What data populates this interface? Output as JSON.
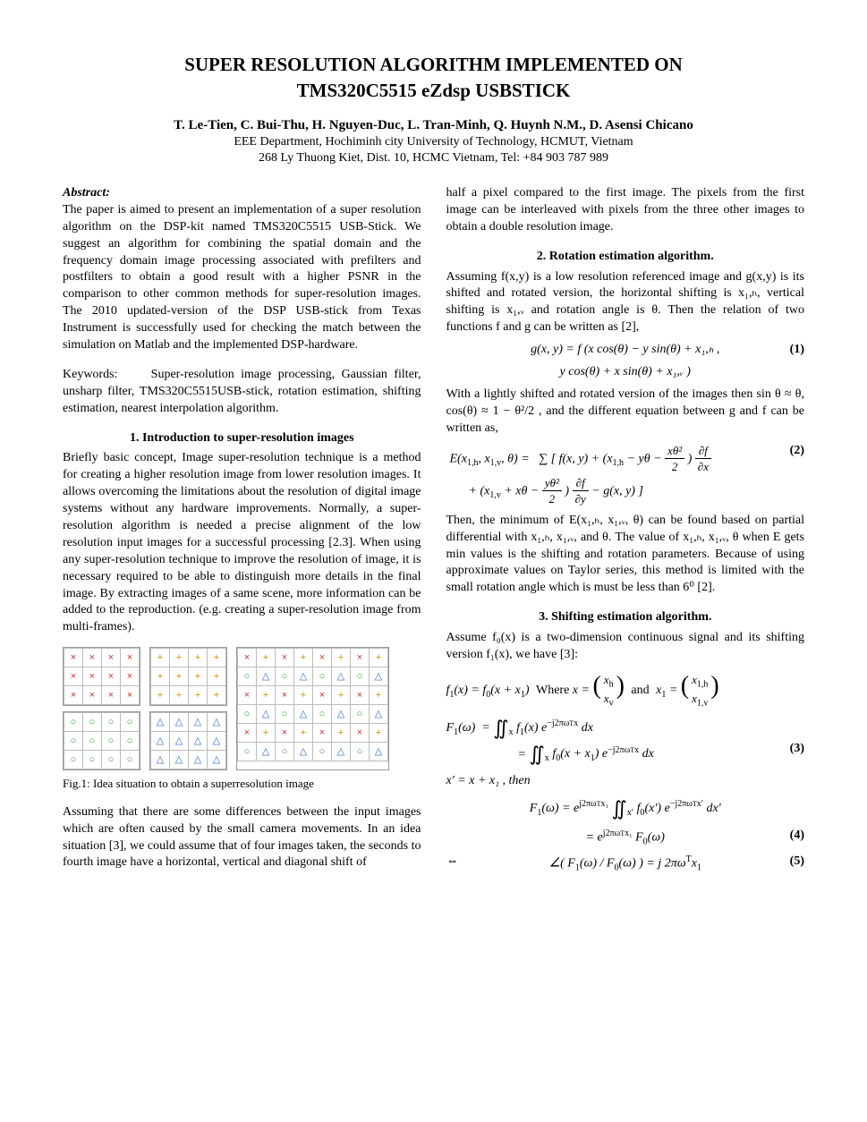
{
  "title_line1": "SUPER RESOLUTION ALGORITHM IMPLEMENTED ON",
  "title_line2": "TMS320C5515 eZdsp USBSTICK",
  "authors": "T. Le-Tien, C. Bui-Thu, H. Nguyen-Duc, L. Tran-Minh, Q. Huynh N.M., D. Asensi Chicano",
  "affil1": "EEE Department, Hochiminh city University of Technology, HCMUT, Vietnam",
  "affil2": "268 Ly Thuong Kiet, Dist. 10, HCMC Vietnam,  Tel:  +84 903 787 989",
  "abstract_label": "Abstract:",
  "abstract_text": "The paper is aimed to present an implementation of a super resolution algorithm on the DSP-kit named TMS320C5515 USB-Stick.  We suggest an algorithm for combining the spatial domain and the frequency domain image processing associated with prefilters and postfilters to obtain a good result with a higher PSNR in the comparison to other common methods for super-resolution images.  The 2010 updated-version of the DSP USB-stick from Texas Instrument is successfully used for checking the match between the simulation on Matlab and the implemented DSP-hardware.",
  "keywords_label": "Keywords:",
  "keywords_text": "Super-resolution image processing, Gaussian filter, unsharp filter, TMS320C5515USB-stick, rotation estimation, shifting estimation, nearest interpolation algorithm.",
  "sec1_h": "1.    Introduction to super-resolution images",
  "sec1_p1": "Briefly basic concept, Image super-resolution technique is a method for creating a higher resolution image from lower resolution images.  It allows overcoming the limitations about the resolution of digital image systems without any hardware improvements. Normally, a super-resolution algorithm is needed a precise alignment of the low resolution input images for a successful processing [2.3]. When using any super-resolution technique to improve the resolution of image, it is necessary required to be able to distinguish more details in the final image. By extracting images of a same scene, more information can be added to the reproduction. (e.g. creating a super-resolution image from multi-frames).",
  "fig1_caption": "Fig.1: Idea situation to obtain a superresolution image",
  "sec1_p2": "Assuming that there are some differences between the input images which are often caused by the small camera movements. In an idea situation [3], we could assume that of four images taken, the seconds to fourth image have a horizontal, vertical and diagonal shift of",
  "col2_p1": "half a pixel compared to the first image. The pixels from the first image can be interleaved with pixels from the three other images to obtain a double resolution image.",
  "sec2_h": "2. Rotation estimation algorithm.",
  "sec2_p1": "Assuming f(x,y) is a low resolution referenced image and g(x,y) is its shifted and rotated version, the horizontal shifting is x₁,ₕ, vertical shifting is x₁,ᵥ and rotation angle is θ. Then the relation of two functions f and g can be written as [2],",
  "eq1": "g(x, y) = f (x cos(θ) − y sin(θ) + x₁,ₕ ,",
  "eq1b": "y cos(θ) + x sin(θ) + x₁,ᵥ )",
  "eq1_num": "(1)",
  "sec2_p2a": "With a lightly shifted and rotated version of the images then sin θ ≈ θ,  cos(θ) ≈ 1 − θ²/2 ,   and   the   different equation between g and f can be written as,",
  "eq2_num": "(2)",
  "sec2_p3": "Then, the minimum of  E(x₁,ₕ, x₁,ᵥ, θ) can be found based on partial differential with x₁,ₕ, x₁,ᵥ, and θ. The value of x₁,ₕ, x₁,ᵥ, θ when E gets min values is the shifting and rotation parameters.  Because of using approximate values on Taylor series, this method is limited with the small rotation angle which is must be less than 6⁰ [2].",
  "sec3_h": "3. Shifting estimation algorithm.",
  "sec3_p1": "Assume  f₀(x)  is a two-dimension continuous signal and  its  shifting  version   f₁(x),   we  have  [3]:",
  "eq3_text": "f₁(x) = f₀(x + x₁)",
  "eq3_where": "Where",
  "eq3_and": "and",
  "eq3_num": "(3)",
  "eq4_text": "x′ = x + x₁ ,   then",
  "eq4_num": "(4)",
  "eq5_num": "(5)",
  "fig1": {
    "small_grids": [
      {
        "rows": 3,
        "cols": 4,
        "symbol": "×",
        "class": "x"
      },
      {
        "rows": 3,
        "cols": 4,
        "symbol": "+",
        "class": "p"
      },
      {
        "rows": 3,
        "cols": 4,
        "symbol": "○",
        "class": "o"
      },
      {
        "rows": 3,
        "cols": 4,
        "symbol": "△",
        "class": "t"
      }
    ],
    "big_grid": {
      "rows": 6,
      "cols": 8,
      "pattern": [
        [
          "×",
          "+",
          "×",
          "+",
          "×",
          "+",
          "×",
          "+"
        ],
        [
          "○",
          "△",
          "○",
          "△",
          "○",
          "△",
          "○",
          "△"
        ],
        [
          "×",
          "+",
          "×",
          "+",
          "×",
          "+",
          "×",
          "+"
        ],
        [
          "○",
          "△",
          "○",
          "△",
          "○",
          "△",
          "○",
          "△"
        ],
        [
          "×",
          "+",
          "×",
          "+",
          "×",
          "+",
          "×",
          "+"
        ],
        [
          "○",
          "△",
          "○",
          "△",
          "○",
          "△",
          "○",
          "△"
        ]
      ],
      "classes": {
        "×": "x",
        "+": "p",
        "○": "o",
        "△": "t"
      }
    }
  }
}
